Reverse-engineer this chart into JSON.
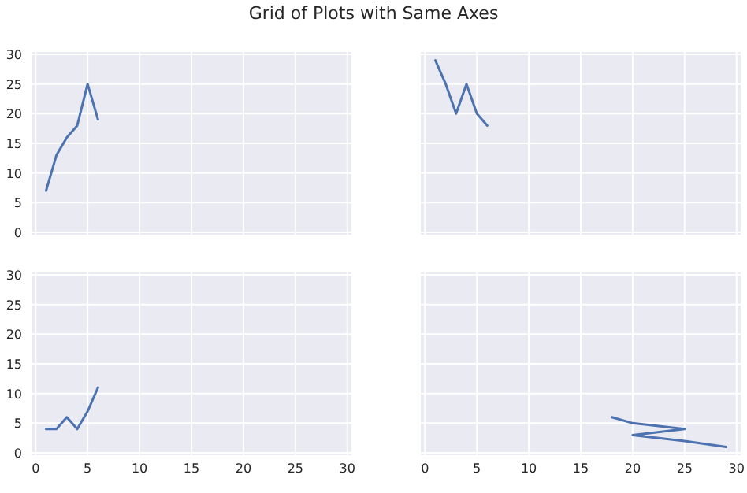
{
  "chart_data": [
    {
      "type": "line",
      "title": "Grid of Plots with Same Axes",
      "x": [
        1,
        2,
        3,
        4,
        5,
        6
      ],
      "series": [
        {
          "color": "#4c72b0",
          "values": [
            7,
            13,
            16,
            18,
            25,
            19
          ]
        }
      ],
      "xlim": [
        -0.4,
        30.4
      ],
      "ylim": [
        -0.4,
        30.4
      ],
      "xticks": [
        0,
        5,
        10,
        15,
        20,
        25,
        30
      ],
      "yticks": [
        0,
        5,
        10,
        15,
        20,
        25,
        30
      ],
      "grid": true,
      "tick_labels": "y"
    },
    {
      "type": "line",
      "x": [
        1,
        2,
        3,
        4,
        5,
        6
      ],
      "series": [
        {
          "color": "#4c72b0",
          "values": [
            29,
            25,
            20,
            25,
            20,
            18
          ]
        }
      ],
      "xlim": [
        -0.4,
        30.4
      ],
      "ylim": [
        -0.4,
        30.4
      ],
      "xticks": [
        0,
        5,
        10,
        15,
        20,
        25,
        30
      ],
      "yticks": [
        0,
        5,
        10,
        15,
        20,
        25,
        30
      ],
      "grid": true,
      "tick_labels": false
    },
    {
      "type": "line",
      "x": [
        1,
        2,
        3,
        4,
        5,
        6
      ],
      "series": [
        {
          "color": "#4c72b0",
          "values": [
            4,
            4,
            6,
            4,
            7,
            11
          ]
        }
      ],
      "xlim": [
        -0.4,
        30.4
      ],
      "ylim": [
        -0.4,
        30.4
      ],
      "xticks": [
        0,
        5,
        10,
        15,
        20,
        25,
        30
      ],
      "yticks": [
        0,
        5,
        10,
        15,
        20,
        25,
        30
      ],
      "grid": true
    },
    {
      "type": "line",
      "x": [
        18,
        20,
        25,
        20,
        25,
        29
      ],
      "series": [
        {
          "color": "#4c72b0",
          "values": [
            6,
            5,
            4,
            3,
            2,
            1
          ]
        }
      ],
      "xlim": [
        -0.4,
        30.4
      ],
      "ylim": [
        -0.4,
        30.4
      ],
      "xticks": [
        0,
        5,
        10,
        15,
        20,
        25,
        30
      ],
      "yticks": [
        0,
        5,
        10,
        15,
        20,
        25,
        30
      ],
      "grid": true,
      "tick_labels": "x"
    }
  ]
}
